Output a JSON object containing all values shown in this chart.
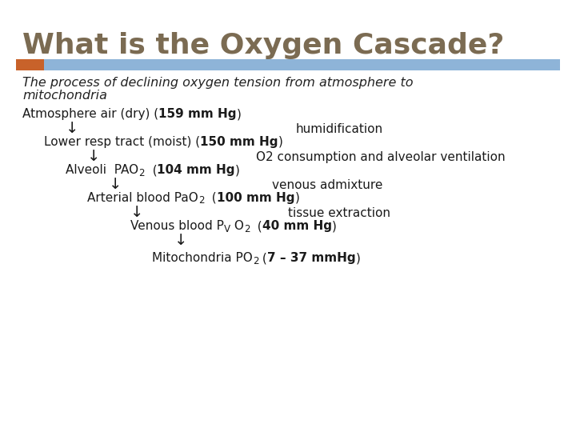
{
  "title": "What is the Oxygen Cascade?",
  "title_color": "#7B6B52",
  "title_fontsize": 26,
  "subtitle_line1": "The process of declining oxygen tension from atmosphere to",
  "subtitle_line2": "mitochondria",
  "subtitle_fontsize": 11.5,
  "subtitle_color": "#222222",
  "bg_color": "#ffffff",
  "bar_orange_color": "#C8622A",
  "bar_blue_color": "#8EB4D8",
  "text_color": "#1a1a1a",
  "text_fontsize": 11,
  "arrow_fontsize": 14
}
